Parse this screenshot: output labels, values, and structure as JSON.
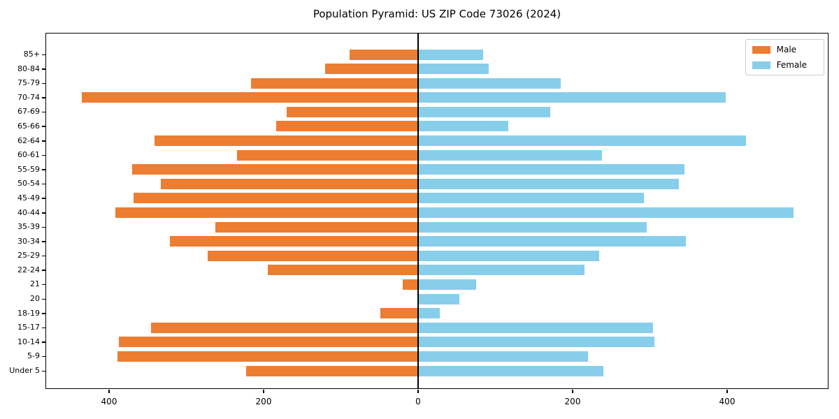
{
  "title": "Population Pyramid: US ZIP Code 73026 (2024)",
  "legend": {
    "male_label": "Male",
    "female_label": "Female",
    "position": "upper right"
  },
  "colors": {
    "male": "#ed7d31",
    "female": "#87ceeb",
    "axis": "#000000",
    "background": "#ffffff"
  },
  "x_axis": {
    "tick_values": [
      -400,
      -200,
      0,
      200,
      400
    ],
    "tick_labels": [
      "400",
      "200",
      "0",
      "200",
      "400"
    ],
    "xlim": [
      -481,
      533
    ]
  },
  "chart_data": {
    "type": "bar",
    "subtype": "population-pyramid",
    "orientation": "horizontal",
    "title": "Population Pyramid: US ZIP Code 73026 (2024)",
    "xlabel": "",
    "ylabel": "",
    "grid": false,
    "legend_position": "upper right",
    "xlim": [
      -481,
      533
    ],
    "x_tick_interval": 200,
    "categories": [
      "85+",
      "80-84",
      "75-79",
      "70-74",
      "67-69",
      "65-66",
      "62-64",
      "60-61",
      "55-59",
      "50-54",
      "45-49",
      "40-44",
      "35-39",
      "30-34",
      "25-29",
      "22-24",
      "21",
      "20",
      "18-19",
      "15-17",
      "10-14",
      "5-9",
      "Under 5"
    ],
    "series": [
      {
        "name": "Male",
        "color": "#ed7d31",
        "direction": "left",
        "values": [
          89,
          120,
          216,
          435,
          170,
          184,
          341,
          234,
          370,
          333,
          368,
          392,
          262,
          321,
          272,
          195,
          20,
          0,
          49,
          346,
          387,
          389,
          223
        ]
      },
      {
        "name": "Female",
        "color": "#87ceeb",
        "direction": "right",
        "values": [
          84,
          91,
          185,
          398,
          171,
          117,
          424,
          238,
          345,
          338,
          292,
          486,
          296,
          347,
          234,
          215,
          75,
          53,
          28,
          304,
          306,
          220,
          240
        ]
      }
    ]
  }
}
